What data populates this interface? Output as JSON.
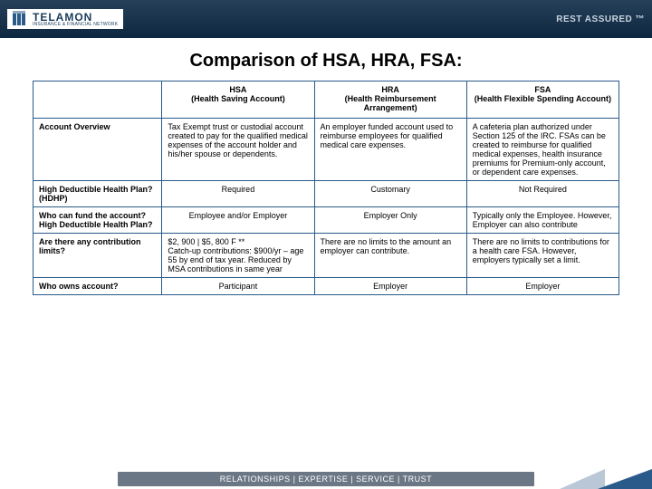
{
  "header": {
    "logo_main": "TELAMON",
    "logo_sub": "INSURANCE & FINANCIAL NETWORK",
    "tagline": "REST ASSURED ™"
  },
  "title": "Comparison of HSA, HRA, FSA:",
  "table": {
    "border_color": "#2a5a8a",
    "columns": [
      {
        "short": "",
        "long": ""
      },
      {
        "short": "HSA",
        "long": "(Health Saving Account)"
      },
      {
        "short": "HRA",
        "long": "(Health Reimbursement Arrangement)"
      },
      {
        "short": "FSA",
        "long": "(Health Flexible Spending Account)"
      }
    ],
    "rows": [
      {
        "label": "Account Overview",
        "hsa": "Tax Exempt trust or custodial account created to pay for the qualified medical expenses of the account holder and his/her spouse or dependents.",
        "hra": "An employer funded account used to reimburse employees for qualified medical care expenses.",
        "fsa": "A cafeteria plan authorized under Section 125 of the IRC. FSAs can be created to reimburse for qualified medical expenses, health insurance premiums for Premium-only account, or dependent care expenses."
      },
      {
        "label": "High Deductible Health Plan? (HDHP)",
        "hsa": "Required",
        "hra": "Customary",
        "fsa": "Not Required",
        "center": true
      },
      {
        "label": "Who can fund the account?  High Deductible Health Plan?",
        "hsa": "Employee and/or Employer",
        "hra": "Employer Only",
        "fsa": "Typically only the Employee. However, Employer can also contribute",
        "center_hsa_hra": true
      },
      {
        "label": "Are there any contribution limits?",
        "hsa": "$2, 900 | $5, 800 F **\nCatch-up contributions: $900/yr – age 55 by end of tax year.  Reduced by MSA contributions in same year",
        "hra": "There are no limits to the amount an employer can contribute.",
        "fsa": "There are no limits to contributions for a health care FSA.  However, employers typically set a limit."
      },
      {
        "label": "Who owns account?",
        "hsa": "Participant",
        "hra": "Employer",
        "fsa": "Employer",
        "center": true
      }
    ]
  },
  "footer": {
    "text": "RELATIONSHIPS  |  EXPERTISE  |  SERVICE  |  TRUST"
  },
  "colors": {
    "header_bg": "#1a3a5a",
    "accent": "#2a5a8a",
    "footer_bar": "#6b7785"
  }
}
